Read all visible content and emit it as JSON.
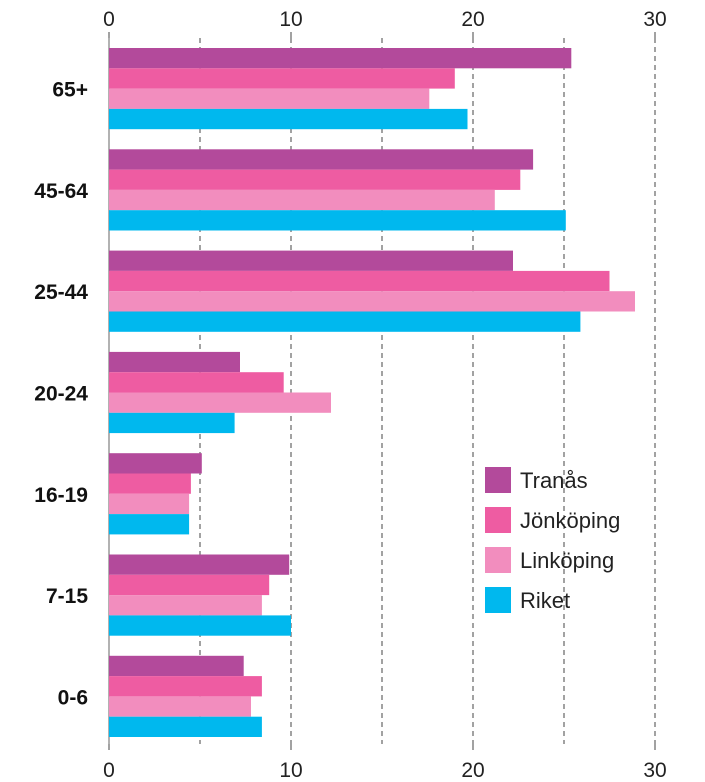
{
  "chart_data": {
    "type": "bar",
    "orientation": "horizontal",
    "title": "",
    "xlabel": "",
    "ylabel": "",
    "xlim": [
      0,
      30
    ],
    "x_ticks": [
      0,
      10,
      20,
      30
    ],
    "x_tick_labels": [
      "0",
      "10",
      "20",
      "30"
    ],
    "grid": "vertical dashed",
    "categories": [
      "65+",
      "45-64",
      "25-44",
      "20-24",
      "16-19",
      "7-15",
      "0-6"
    ],
    "series": [
      {
        "name": "Tranås",
        "color": "#B34A9B",
        "values": [
          25.4,
          23.3,
          22.2,
          7.2,
          5.1,
          9.9,
          7.4
        ]
      },
      {
        "name": "Jönköping",
        "color": "#EE5CA2",
        "values": [
          19.0,
          22.6,
          27.5,
          9.6,
          4.5,
          8.8,
          8.4
        ]
      },
      {
        "name": "Linköping",
        "color": "#F28DBE",
        "values": [
          17.6,
          21.2,
          28.9,
          12.2,
          4.4,
          8.4,
          7.8
        ]
      },
      {
        "name": "Riket",
        "color": "#00B8EE",
        "values": [
          19.7,
          25.1,
          25.9,
          6.9,
          4.4,
          10.0,
          8.4
        ]
      }
    ],
    "legend_position": "lower-right"
  }
}
